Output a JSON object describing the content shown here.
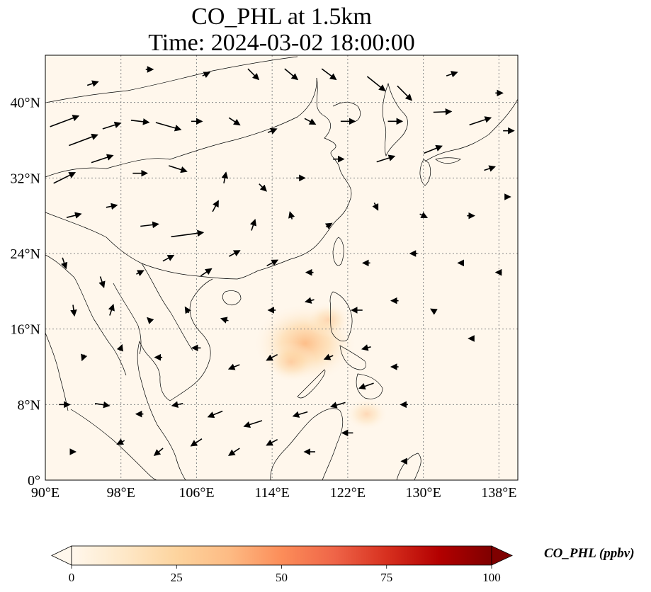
{
  "title_line1": "CO_PHL at 1.5km",
  "title_line2": "Time: 2024-03-02 18:00:00",
  "map": {
    "lon_range": [
      90,
      140
    ],
    "lat_range": [
      0,
      45
    ],
    "lon_ticks": [
      {
        "value": 90,
        "label": "90°E"
      },
      {
        "value": 98,
        "label": "98°E"
      },
      {
        "value": 106,
        "label": "106°E"
      },
      {
        "value": 114,
        "label": "114°E"
      },
      {
        "value": 122,
        "label": "122°E"
      },
      {
        "value": 130,
        "label": "130°E"
      },
      {
        "value": 138,
        "label": "138°E"
      }
    ],
    "lat_ticks": [
      {
        "value": 0,
        "label": "0°"
      },
      {
        "value": 8,
        "label": "8°N"
      },
      {
        "value": 16,
        "label": "16°N"
      },
      {
        "value": 24,
        "label": "24°N"
      },
      {
        "value": 32,
        "label": "32°N"
      },
      {
        "value": 40,
        "label": "40°N"
      }
    ],
    "gridlines": true,
    "background_color": "#fff7ec",
    "plumes": [
      {
        "lon": 117.5,
        "lat": 14.5,
        "value": 28
      },
      {
        "lon": 116.0,
        "lat": 12.5,
        "value": 10
      },
      {
        "lon": 120.0,
        "lat": 17.0,
        "value": 8
      },
      {
        "lon": 124.0,
        "lat": 7.0,
        "value": 7
      }
    ],
    "wind_arrows": [
      {
        "lon": 92,
        "lat": 38,
        "u": 4,
        "v": 1.5
      },
      {
        "lon": 94,
        "lat": 36,
        "u": 4,
        "v": 1.5
      },
      {
        "lon": 97,
        "lat": 37.5,
        "u": 2.5,
        "v": 0.8
      },
      {
        "lon": 100,
        "lat": 38,
        "u": 2.5,
        "v": -0.3
      },
      {
        "lon": 103,
        "lat": 37.5,
        "u": 3.5,
        "v": -1
      },
      {
        "lon": 106,
        "lat": 38,
        "u": 1.5,
        "v": 0
      },
      {
        "lon": 110,
        "lat": 38,
        "u": 1.5,
        "v": -1
      },
      {
        "lon": 114,
        "lat": 37,
        "u": 1.2,
        "v": 0.5
      },
      {
        "lon": 118,
        "lat": 38,
        "u": 1.5,
        "v": -0.8
      },
      {
        "lon": 122,
        "lat": 38,
        "u": 2,
        "v": 0
      },
      {
        "lon": 127,
        "lat": 38,
        "u": 2,
        "v": 0
      },
      {
        "lon": 132,
        "lat": 39,
        "u": 2.5,
        "v": 0.1
      },
      {
        "lon": 136,
        "lat": 38,
        "u": 3,
        "v": 1
      },
      {
        "lon": 139,
        "lat": 37,
        "u": 1.5,
        "v": 0
      },
      {
        "lon": 95,
        "lat": 42,
        "u": 1.5,
        "v": 0.5
      },
      {
        "lon": 101,
        "lat": 43.5,
        "u": 1,
        "v": 0
      },
      {
        "lon": 107,
        "lat": 43,
        "u": 1,
        "v": 0.5
      },
      {
        "lon": 112,
        "lat": 43,
        "u": 1.5,
        "v": -1.5
      },
      {
        "lon": 116,
        "lat": 43,
        "u": 1.8,
        "v": -1.5
      },
      {
        "lon": 120,
        "lat": 43,
        "u": 2,
        "v": -1.5
      },
      {
        "lon": 125,
        "lat": 42,
        "u": 2.5,
        "v": -2
      },
      {
        "lon": 128,
        "lat": 41,
        "u": 2,
        "v": -2
      },
      {
        "lon": 133,
        "lat": 43,
        "u": 1.5,
        "v": 0.5
      },
      {
        "lon": 138,
        "lat": 41,
        "u": 1,
        "v": 0
      },
      {
        "lon": 92,
        "lat": 32,
        "u": 3,
        "v": 1.5
      },
      {
        "lon": 96,
        "lat": 34,
        "u": 3,
        "v": 1
      },
      {
        "lon": 100,
        "lat": 32.5,
        "u": 2,
        "v": 0
      },
      {
        "lon": 104,
        "lat": 33,
        "u": 2.5,
        "v": -0.8
      },
      {
        "lon": 109,
        "lat": 32,
        "u": 0.3,
        "v": 1.5
      },
      {
        "lon": 113,
        "lat": 31,
        "u": 1,
        "v": -1
      },
      {
        "lon": 117,
        "lat": 32,
        "u": 1.2,
        "v": 0
      },
      {
        "lon": 121,
        "lat": 34,
        "u": 1.5,
        "v": 0
      },
      {
        "lon": 126,
        "lat": 34,
        "u": 2.5,
        "v": 0.8
      },
      {
        "lon": 131,
        "lat": 35,
        "u": 2.5,
        "v": 1
      },
      {
        "lon": 137,
        "lat": 33,
        "u": 1.5,
        "v": 0.5
      },
      {
        "lon": 93,
        "lat": 28,
        "u": 2,
        "v": 0.5
      },
      {
        "lon": 97,
        "lat": 29,
        "u": 1.5,
        "v": 0.3
      },
      {
        "lon": 101,
        "lat": 27,
        "u": 2.5,
        "v": 0.3
      },
      {
        "lon": 105,
        "lat": 26,
        "u": 4.5,
        "v": 0.6
      },
      {
        "lon": 108,
        "lat": 29,
        "u": 0.8,
        "v": 1.5
      },
      {
        "lon": 112,
        "lat": 27,
        "u": 0.5,
        "v": 1.5
      },
      {
        "lon": 116,
        "lat": 28,
        "u": -0.3,
        "v": 1
      },
      {
        "lon": 120,
        "lat": 27,
        "u": 0.8,
        "v": 0.5
      },
      {
        "lon": 125,
        "lat": 29,
        "u": 0.5,
        "v": -1
      },
      {
        "lon": 130,
        "lat": 28,
        "u": 1,
        "v": -0.5
      },
      {
        "lon": 135,
        "lat": 28,
        "u": 1,
        "v": 0
      },
      {
        "lon": 139,
        "lat": 30,
        "u": 0.5,
        "v": 0
      },
      {
        "lon": 92,
        "lat": 23,
        "u": 0.5,
        "v": -1.5
      },
      {
        "lon": 96,
        "lat": 21,
        "u": 0.5,
        "v": -1.5
      },
      {
        "lon": 100,
        "lat": 22,
        "u": 1,
        "v": 0.5
      },
      {
        "lon": 103,
        "lat": 23.5,
        "u": 1.5,
        "v": 0.8
      },
      {
        "lon": 107,
        "lat": 22,
        "u": 1.5,
        "v": 1
      },
      {
        "lon": 110,
        "lat": 24,
        "u": 1.5,
        "v": 0.8
      },
      {
        "lon": 114,
        "lat": 23,
        "u": 1.5,
        "v": 0.8
      },
      {
        "lon": 118,
        "lat": 22,
        "u": -1,
        "v": 0
      },
      {
        "lon": 124,
        "lat": 23,
        "u": -1,
        "v": 0
      },
      {
        "lon": 129,
        "lat": 24,
        "u": -1,
        "v": 0
      },
      {
        "lon": 134,
        "lat": 23,
        "u": -0.8,
        "v": 0
      },
      {
        "lon": 138,
        "lat": 22,
        "u": -0.8,
        "v": 0
      },
      {
        "lon": 93,
        "lat": 18,
        "u": 0.2,
        "v": -1.5
      },
      {
        "lon": 97,
        "lat": 18,
        "u": 0.5,
        "v": 1.5
      },
      {
        "lon": 101,
        "lat": 17,
        "u": -0.5,
        "v": 0.5
      },
      {
        "lon": 105,
        "lat": 18,
        "u": -0.5,
        "v": 0.8
      },
      {
        "lon": 109,
        "lat": 17,
        "u": -1,
        "v": 0.3
      },
      {
        "lon": 114,
        "lat": 18,
        "u": -1,
        "v": 0
      },
      {
        "lon": 118,
        "lat": 19,
        "u": -1.2,
        "v": -0.3
      },
      {
        "lon": 123,
        "lat": 18,
        "u": -1.5,
        "v": 0
      },
      {
        "lon": 127,
        "lat": 19,
        "u": -1,
        "v": 0
      },
      {
        "lon": 131,
        "lat": 18,
        "u": -0.5,
        "v": 0.3
      },
      {
        "lon": 94,
        "lat": 13,
        "u": -0.3,
        "v": -0.8
      },
      {
        "lon": 98,
        "lat": 14,
        "u": 0.3,
        "v": 0.8
      },
      {
        "lon": 102,
        "lat": 13,
        "u": -1,
        "v": 0
      },
      {
        "lon": 106,
        "lat": 14,
        "u": -1.2,
        "v": 0
      },
      {
        "lon": 110,
        "lat": 12,
        "u": -1.5,
        "v": -0.6
      },
      {
        "lon": 114,
        "lat": 13,
        "u": -1.5,
        "v": -0.8
      },
      {
        "lon": 120,
        "lat": 13,
        "u": -1.2,
        "v": -0.5
      },
      {
        "lon": 124,
        "lat": 14,
        "u": -1.2,
        "v": -0.3
      },
      {
        "lon": 127,
        "lat": 12,
        "u": -1,
        "v": 0
      },
      {
        "lon": 135,
        "lat": 15,
        "u": -0.5,
        "v": 0
      },
      {
        "lon": 92,
        "lat": 8,
        "u": 1.5,
        "v": 0
      },
      {
        "lon": 96,
        "lat": 8,
        "u": 2,
        "v": -0.3
      },
      {
        "lon": 100,
        "lat": 7,
        "u": -1,
        "v": 0
      },
      {
        "lon": 104,
        "lat": 8,
        "u": -1.5,
        "v": -0.3
      },
      {
        "lon": 108,
        "lat": 7,
        "u": -2,
        "v": -0.8
      },
      {
        "lon": 112,
        "lat": 6,
        "u": -2.5,
        "v": -0.8
      },
      {
        "lon": 117,
        "lat": 7,
        "u": -2,
        "v": -0.6
      },
      {
        "lon": 121,
        "lat": 8,
        "u": -2,
        "v": -0.6
      },
      {
        "lon": 124,
        "lat": 10,
        "u": -2,
        "v": -0.7
      },
      {
        "lon": 128,
        "lat": 8,
        "u": -1,
        "v": 0
      },
      {
        "lon": 93,
        "lat": 3,
        "u": 0.5,
        "v": 0
      },
      {
        "lon": 98,
        "lat": 4,
        "u": -1,
        "v": -0.5
      },
      {
        "lon": 102,
        "lat": 3,
        "u": -1.2,
        "v": -1
      },
      {
        "lon": 106,
        "lat": 4,
        "u": -1.5,
        "v": -1
      },
      {
        "lon": 110,
        "lat": 3,
        "u": -1.5,
        "v": -1
      },
      {
        "lon": 114,
        "lat": 4,
        "u": -1.5,
        "v": -0.8
      },
      {
        "lon": 118,
        "lat": 3,
        "u": -1.5,
        "v": 0
      },
      {
        "lon": 122,
        "lat": 5,
        "u": -1.5,
        "v": 0
      },
      {
        "lon": 128,
        "lat": 2,
        "u": -0.8,
        "v": 0
      }
    ]
  },
  "colorbar": {
    "label": "CO_PHL (ppbv)",
    "min": 0,
    "max": 100,
    "colormap": "OrRd",
    "extend": "both",
    "stops": [
      "#fff7ec",
      "#fee8c8",
      "#fdd49e",
      "#fdbb84",
      "#fc8d59",
      "#ef6548",
      "#d7301f",
      "#b30000",
      "#7f0000"
    ],
    "ticks": [
      {
        "value": 0,
        "label": "0"
      },
      {
        "value": 25,
        "label": "25"
      },
      {
        "value": 50,
        "label": "50"
      },
      {
        "value": 75,
        "label": "75"
      },
      {
        "value": 100,
        "label": "100"
      }
    ]
  }
}
